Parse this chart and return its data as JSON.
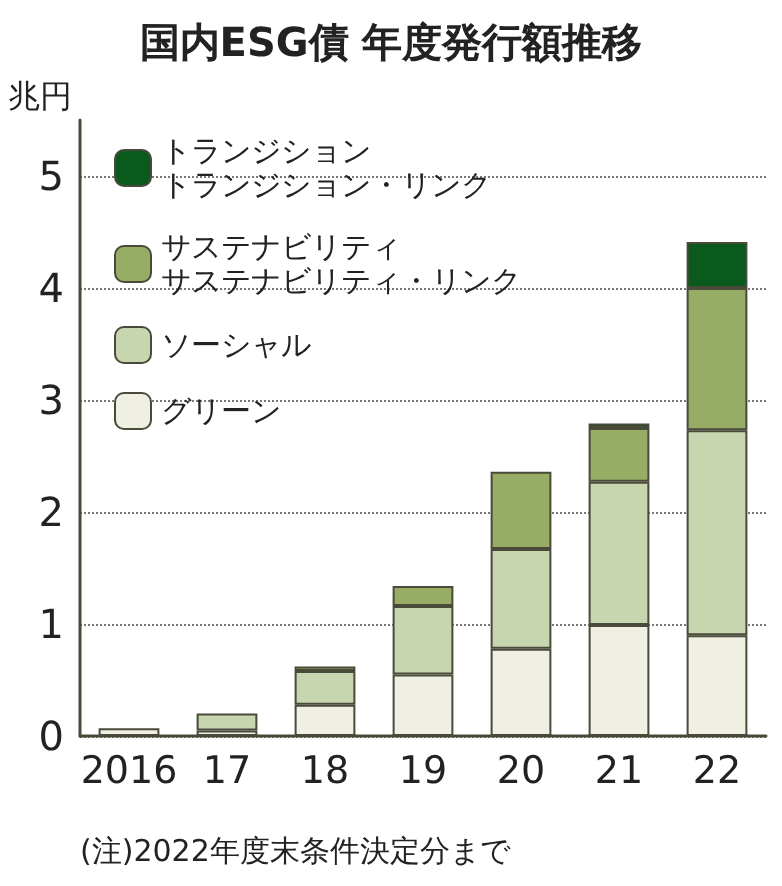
{
  "chart_data": {
    "type": "bar",
    "title": "国内ESG債 年度発行額推移",
    "ylabel": "兆円",
    "categories": [
      "2016",
      "17",
      "18",
      "19",
      "20",
      "21",
      "22"
    ],
    "stacked": true,
    "series": [
      {
        "name": "グリーン",
        "color": "#f0efe4",
        "values": [
          0.07,
          0.05,
          0.28,
          0.55,
          0.78,
          0.99,
          0.9
        ]
      },
      {
        "name": "ソーシャル",
        "color": "#c8d6b0",
        "values": [
          null,
          0.15,
          0.3,
          0.61,
          0.89,
          1.28,
          1.83
        ]
      },
      {
        "name": "サステナビリティサステナビリティ・リンク",
        "color": "#97ad66",
        "values": [
          null,
          null,
          0.04,
          0.18,
          0.69,
          0.48,
          1.27
        ]
      },
      {
        "name": "トランジショントランジション・リンク",
        "color": "#0a5a1e",
        "values": [
          null,
          null,
          null,
          null,
          null,
          0.04,
          0.41
        ]
      }
    ],
    "ylim": [
      0,
      5.5
    ],
    "yticks": [
      0,
      1,
      2,
      3,
      4,
      5
    ],
    "grid": "y",
    "legend": "top left",
    "annotations": [
      "(注)2022年度末条件決定分まで"
    ]
  }
}
